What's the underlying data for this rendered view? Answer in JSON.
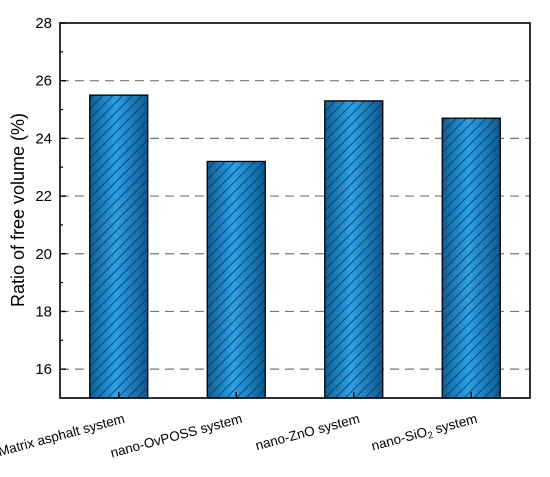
{
  "chart_data": {
    "type": "bar",
    "title": "",
    "xlabel": "",
    "ylabel": "Ratio of free volume (%)",
    "ylim": [
      15,
      28
    ],
    "yticks": [
      16,
      18,
      20,
      22,
      24,
      26,
      28
    ],
    "grid": "horizontal dashed",
    "categories": [
      {
        "main": "Matrix asphalt system",
        "sub": "",
        "after": ""
      },
      {
        "main": "nano-OvPOSS system",
        "sub": "",
        "after": ""
      },
      {
        "main": "nano-ZnO system",
        "sub": "",
        "after": ""
      },
      {
        "main": "nano-SiO",
        "sub": "2",
        "after": " system"
      }
    ],
    "values": [
      25.5,
      23.2,
      25.3,
      24.7
    ],
    "bar_color": "#1e8fd0",
    "hatch_color": "#0f2f55"
  }
}
